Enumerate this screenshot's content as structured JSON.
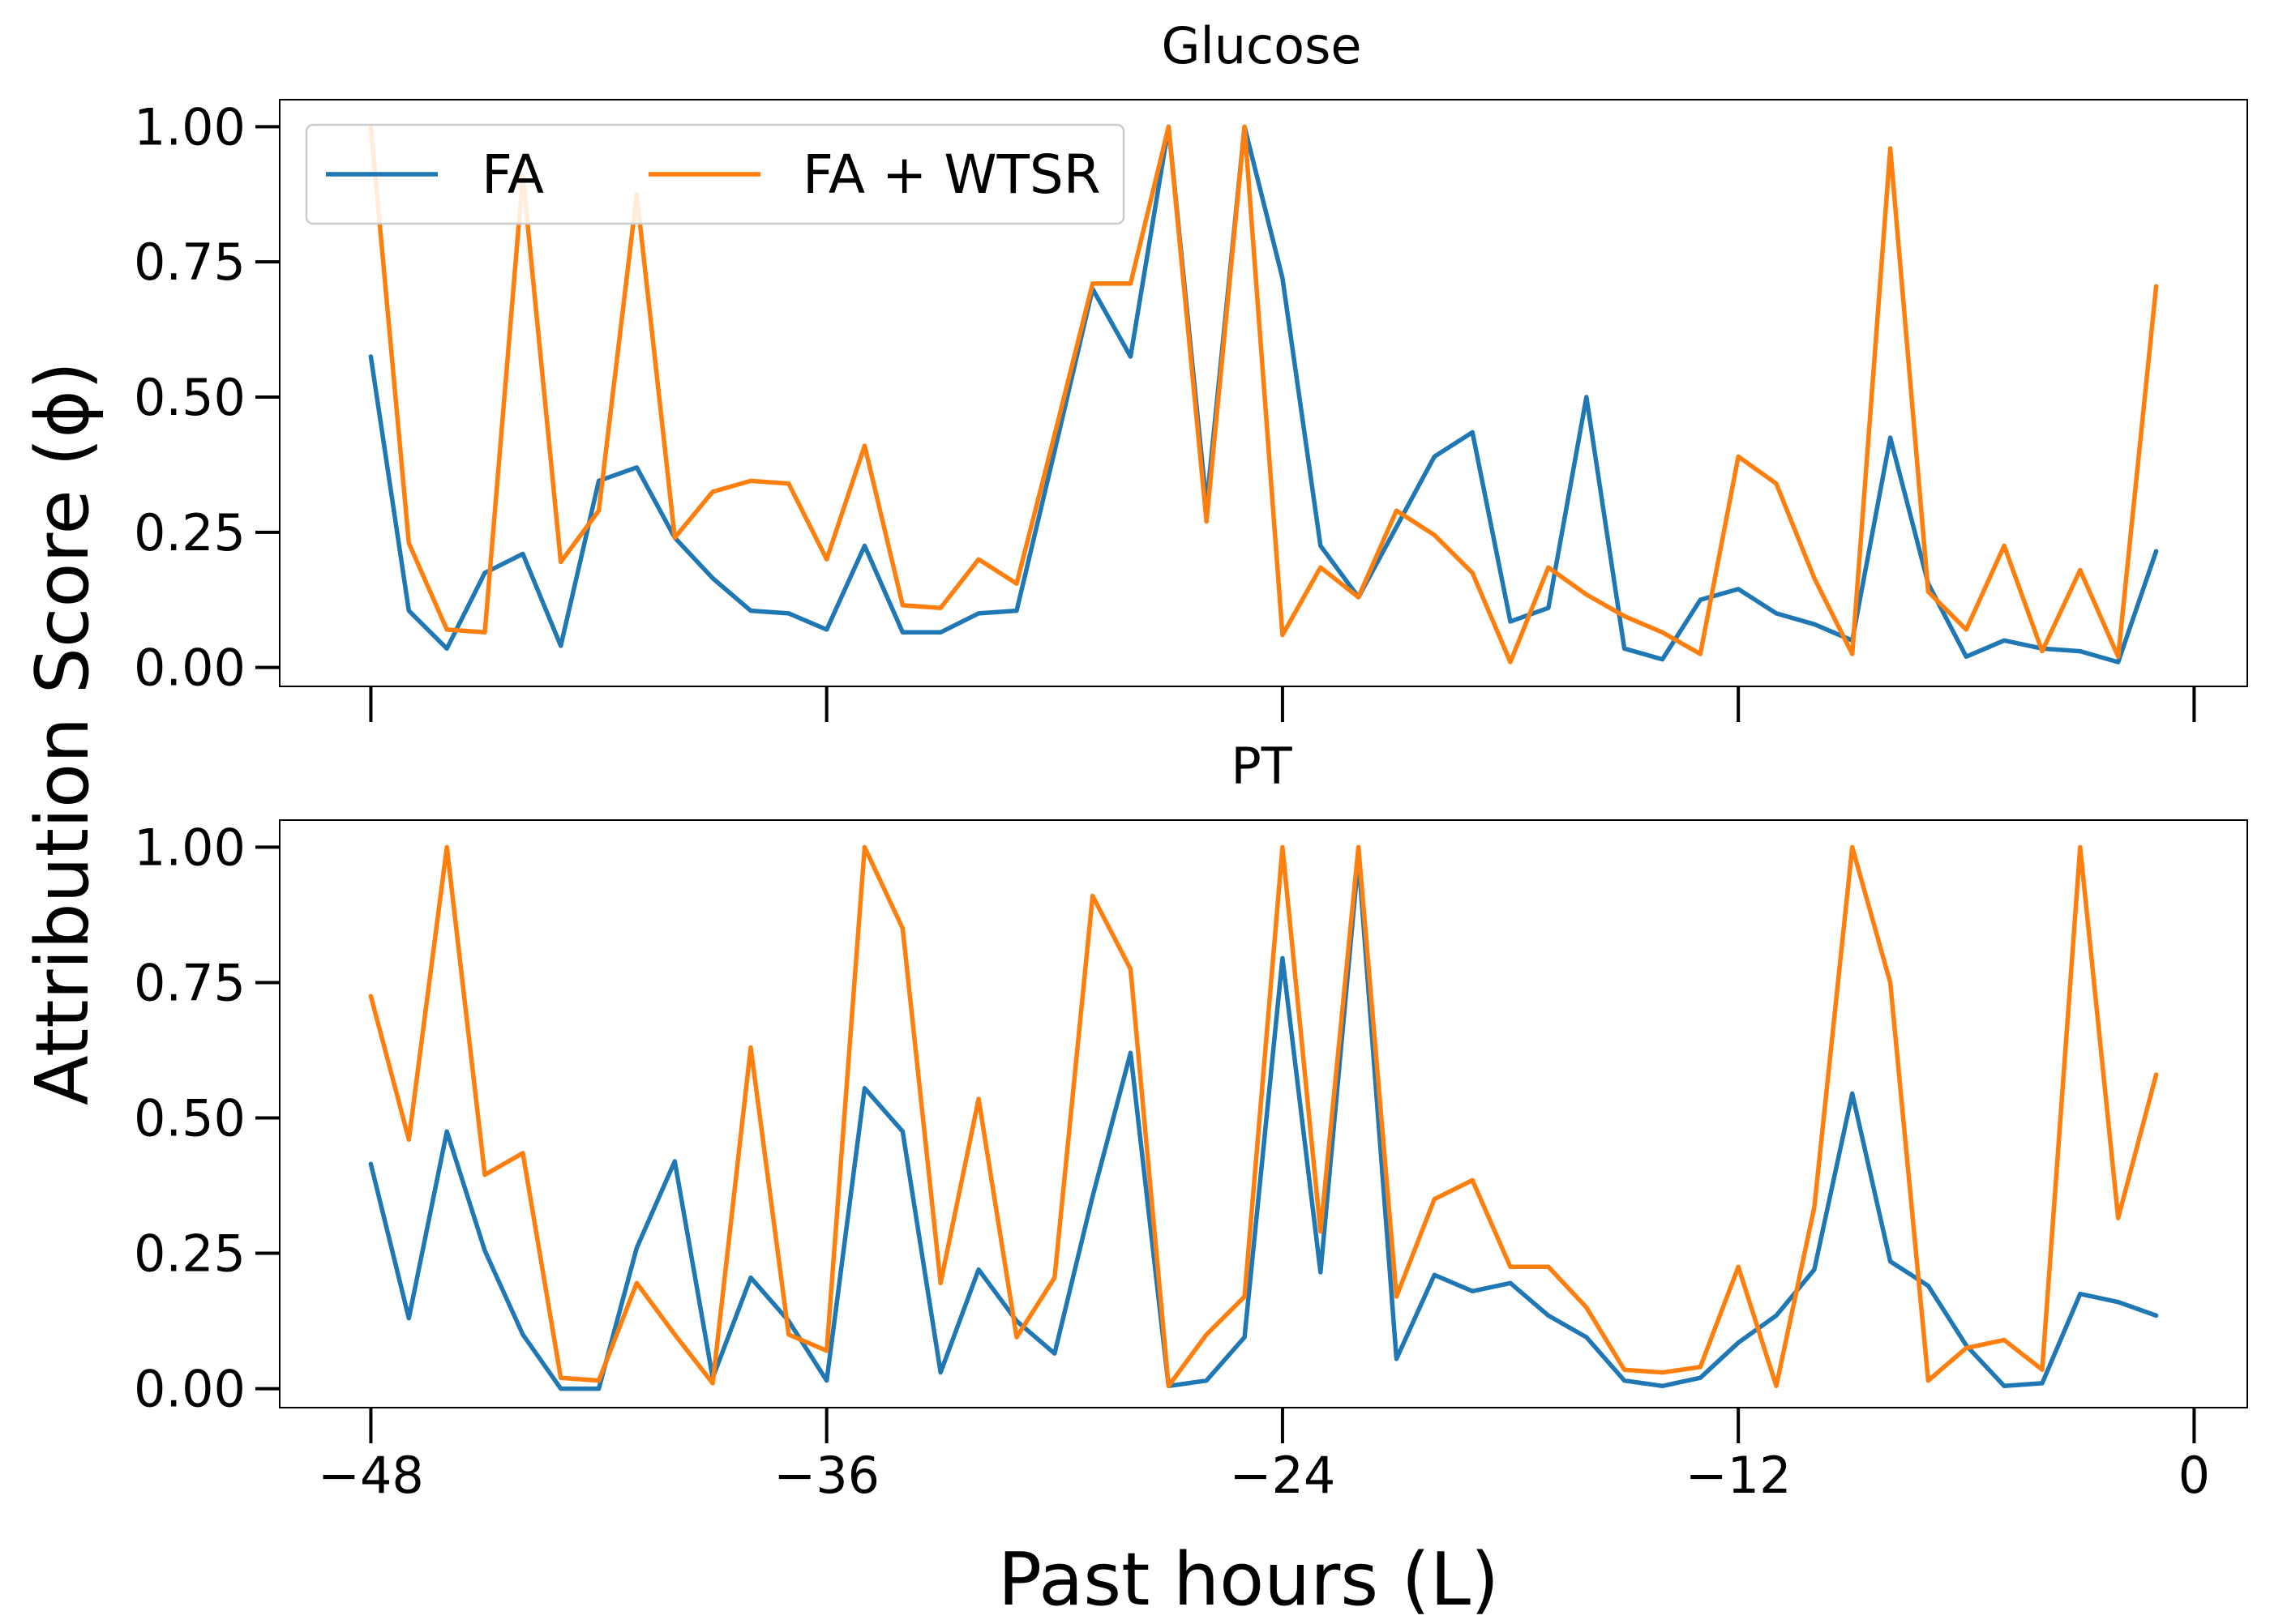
{
  "chart_data": {
    "type": "line",
    "xlabel": "Past hours (L)",
    "ylabel": "Attribution Score (ϕ)",
    "x": [
      -48,
      -47,
      -46,
      -45,
      -44,
      -43,
      -42,
      -41,
      -40,
      -39,
      -38,
      -37,
      -36,
      -35,
      -34,
      -33,
      -32,
      -31,
      -30,
      -29,
      -28,
      -27,
      -26,
      -25,
      -24,
      -23,
      -22,
      -21,
      -20,
      -19,
      -18,
      -17,
      -16,
      -15,
      -14,
      -13,
      -12,
      -11,
      -10,
      -9,
      -8,
      -7,
      -6,
      -5,
      -4,
      -3,
      -2,
      -1
    ],
    "xticks": [
      -48,
      -36,
      -24,
      -12,
      0
    ],
    "xtick_labels": [
      "−48",
      "−36",
      "−24",
      "−12",
      "0"
    ],
    "xlim": [
      -50.4,
      1.4
    ],
    "ylim": [
      -0.035,
      1.05
    ],
    "yticks": [
      0.0,
      0.25,
      0.5,
      0.75,
      1.0
    ],
    "ytick_labels": [
      "0.00",
      "0.25",
      "0.50",
      "0.75",
      "1.00"
    ],
    "grid": false,
    "legend_position": "top-left",
    "legend": [
      {
        "name": "FA",
        "color": "#1f77b4"
      },
      {
        "name": "FA + WTSR",
        "color": "#ff7f0e"
      }
    ],
    "panels": [
      {
        "title": "Glucose",
        "series": [
          {
            "name": "FA",
            "color": "#1f77b4",
            "values": [
              0.575,
              0.105,
              0.035,
              0.175,
              0.21,
              0.04,
              0.345,
              0.37,
              0.24,
              0.165,
              0.105,
              0.1,
              0.07,
              0.225,
              0.065,
              0.065,
              0.1,
              0.105,
              0.4,
              0.7,
              0.575,
              1.0,
              0.3,
              1.0,
              0.72,
              0.225,
              0.13,
              0.26,
              0.39,
              0.435,
              0.085,
              0.11,
              0.5,
              0.035,
              0.015,
              0.125,
              0.145,
              0.1,
              0.08,
              0.05,
              0.425,
              0.155,
              0.02,
              0.05,
              0.035,
              0.03,
              0.01,
              0.215
            ]
          },
          {
            "name": "FA + WTSR",
            "color": "#ff7f0e",
            "values": [
              1.0,
              0.23,
              0.07,
              0.065,
              0.91,
              0.195,
              0.29,
              0.875,
              0.24,
              0.325,
              0.345,
              0.34,
              0.2,
              0.41,
              0.115,
              0.11,
              0.2,
              0.155,
              0.43,
              0.71,
              0.71,
              1.0,
              0.27,
              1.0,
              0.06,
              0.185,
              0.13,
              0.29,
              0.245,
              0.175,
              0.01,
              0.185,
              0.135,
              0.095,
              0.065,
              0.025,
              0.39,
              0.34,
              0.165,
              0.025,
              0.96,
              0.14,
              0.07,
              0.225,
              0.03,
              0.18,
              0.02,
              0.705
            ]
          }
        ]
      },
      {
        "title": "PT",
        "series": [
          {
            "name": "FA",
            "color": "#1f77b4",
            "values": [
              0.415,
              0.13,
              0.475,
              0.255,
              0.1,
              0.0,
              0.0,
              0.26,
              0.42,
              0.02,
              0.205,
              0.125,
              0.015,
              0.555,
              0.475,
              0.03,
              0.22,
              0.125,
              0.065,
              0.355,
              0.62,
              0.005,
              0.015,
              0.095,
              0.795,
              0.215,
              0.98,
              0.055,
              0.21,
              0.18,
              0.195,
              0.135,
              0.095,
              0.015,
              0.005,
              0.02,
              0.085,
              0.135,
              0.22,
              0.545,
              0.235,
              0.19,
              0.08,
              0.005,
              0.01,
              0.175,
              0.16,
              0.135
            ]
          },
          {
            "name": "FA + WTSR",
            "color": "#ff7f0e",
            "values": [
              0.725,
              0.46,
              1.0,
              0.395,
              0.435,
              0.02,
              0.015,
              0.195,
              0.1,
              0.01,
              0.63,
              0.1,
              0.07,
              1.0,
              0.85,
              0.195,
              0.535,
              0.095,
              0.205,
              0.91,
              0.775,
              0.005,
              0.1,
              0.17,
              1.0,
              0.29,
              1.0,
              0.17,
              0.35,
              0.385,
              0.225,
              0.225,
              0.15,
              0.035,
              0.03,
              0.04,
              0.225,
              0.005,
              0.335,
              1.0,
              0.75,
              0.015,
              0.075,
              0.09,
              0.035,
              1.0,
              0.315,
              0.58
            ]
          }
        ]
      }
    ]
  }
}
